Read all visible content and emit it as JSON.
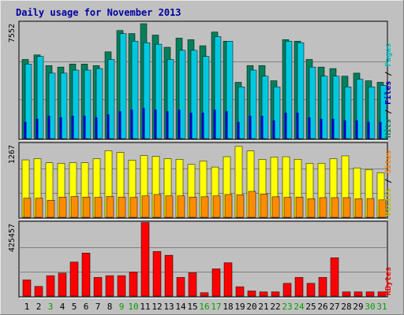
{
  "chart_data": {
    "type": "bar",
    "title": "Daily usage for November 2013",
    "categories": [
      "1",
      "2",
      "3",
      "4",
      "5",
      "6",
      "7",
      "8",
      "9",
      "10",
      "11",
      "12",
      "13",
      "14",
      "15",
      "16",
      "17",
      "18",
      "19",
      "20",
      "21",
      "22",
      "23",
      "24",
      "25",
      "26",
      "27",
      "28",
      "29",
      "30",
      "31"
    ],
    "weekend_days": [
      "3",
      "9",
      "10",
      "16",
      "17",
      "23",
      "24",
      "30",
      "31"
    ],
    "panels": [
      {
        "id": "hits",
        "max_label": "7552",
        "ylim": [
          0,
          7552
        ],
        "legend": [
          {
            "text": "Hits",
            "color": "#008060"
          },
          {
            "text": "Files",
            "color": "#0000c0"
          },
          {
            "text": "Pages",
            "color": "#00c0c0"
          }
        ],
        "series": [
          {
            "name": "Hits",
            "color": "#00805c",
            "values": [
              5200,
              5500,
              4800,
              4700,
              4900,
              4900,
              4800,
              5700,
              7100,
              6900,
              7550,
              6800,
              6000,
              6600,
              6500,
              6100,
              7000,
              6400,
              3700,
              4800,
              4800,
              3800,
              6500,
              6400,
              5200,
              4700,
              4600,
              4100,
              4300,
              3800,
              3700
            ]
          },
          {
            "name": "Files",
            "color": "#0000c0",
            "values": [
              1100,
              1300,
              1500,
              1400,
              1500,
              1500,
              1400,
              1600,
              1800,
              1900,
              2000,
              1900,
              1800,
              1900,
              1700,
              1700,
              1900,
              1800,
              1100,
              1500,
              1500,
              1200,
              1700,
              1700,
              1400,
              1300,
              1300,
              1200,
              1200,
              1100,
              1100
            ]
          },
          {
            "name": "Pages",
            "color": "#00c8e0",
            "values": [
              4900,
              5400,
              4300,
              4300,
              4500,
              4500,
              4600,
              5200,
              6900,
              6400,
              6300,
              6200,
              5200,
              5800,
              5800,
              5400,
              6700,
              6400,
              3400,
              4500,
              4100,
              3400,
              6400,
              6300,
              4700,
              4100,
              4100,
              3400,
              3900,
              3400,
              3500
            ]
          }
        ]
      },
      {
        "id": "visits",
        "max_label": "1267",
        "ylim": [
          0,
          1267
        ],
        "legend": [
          {
            "text": "Visits",
            "color": "#c0c000"
          },
          {
            "text": "Sites",
            "color": "#ff8000"
          }
        ],
        "series": [
          {
            "name": "Visits",
            "color": "#ffff00",
            "values": [
              1005,
              1025,
              955,
              945,
              955,
              955,
              1025,
              1165,
              1135,
              1000,
              1080,
              1065,
              1025,
              1015,
              925,
              985,
              880,
              1060,
              1240,
              1160,
              1015,
              1055,
              1060,
              1015,
              945,
              945,
              1025,
              1075,
              865,
              835,
              780
            ]
          },
          {
            "name": "Sites",
            "color": "#ff8c00",
            "values": [
              335,
              335,
              300,
              355,
              365,
              355,
              350,
              365,
              355,
              350,
              375,
              400,
              375,
              375,
              355,
              360,
              375,
              400,
              395,
              455,
              410,
              360,
              350,
              355,
              325,
              345,
              345,
              345,
              325,
              330,
              305
            ]
          }
        ]
      },
      {
        "id": "kbytes",
        "max_label": "425457",
        "ylim": [
          0,
          425457
        ],
        "legend": [
          {
            "text": "KBytes",
            "color": "#ff0000"
          }
        ],
        "series": [
          {
            "name": "KBytes",
            "color": "#ff0000",
            "values": [
              95000,
              57000,
              120000,
              135000,
              200000,
              253000,
              110000,
              120000,
              120000,
              142000,
              432000,
              262000,
              240000,
              110000,
              137000,
              20000,
              160000,
              196000,
              55000,
              30000,
              25000,
              25000,
              75000,
              110000,
              75000,
              110000,
              225000,
              25000,
              25000,
              25000,
              25000
            ]
          }
        ]
      }
    ]
  }
}
